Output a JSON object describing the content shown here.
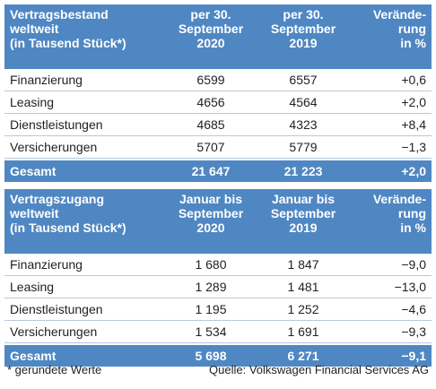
{
  "tables": [
    {
      "header": [
        "Vertragsbestand\nweltweit\n(in Tausend Stück*)",
        "per 30.\nSeptember\n2020",
        "per 30.\nSeptember\n2019",
        "Verände-\nrung\nin %"
      ],
      "rows": [
        [
          "Finanzierung",
          "6599",
          "6557",
          "+0,6"
        ],
        [
          "Leasing",
          "4656",
          "4564",
          "+2,0"
        ],
        [
          "Dienstleistungen",
          "4685",
          "4323",
          "+8,4"
        ],
        [
          "Versicherungen",
          "5707",
          "5779",
          "−1,3"
        ]
      ],
      "total": [
        "Gesamt",
        "21 647",
        "21 223",
        "+2,0"
      ]
    },
    {
      "header": [
        "Vertragszugang\nweltweit\n(in Tausend Stück*)",
        "Januar bis\nSeptember\n2020",
        "Januar bis\nSeptember\n2019",
        "Verände-\nrung\nin %"
      ],
      "rows": [
        [
          "Finanzierung",
          "1 680",
          "1 847",
          "−9,0"
        ],
        [
          "Leasing",
          "1 289",
          "1 481",
          "−13,0"
        ],
        [
          "Dienstleistungen",
          "1 195",
          "1 252",
          "−4,6"
        ],
        [
          "Versicherungen",
          "1 534",
          "1 691",
          "−9,3"
        ]
      ],
      "total": [
        "Gesamt",
        "5 698",
        "6 271",
        "−9,1"
      ]
    }
  ],
  "footer": {
    "note": "* gerundete Werte",
    "source": "Quelle: Volkswagen Financial Services AG"
  }
}
